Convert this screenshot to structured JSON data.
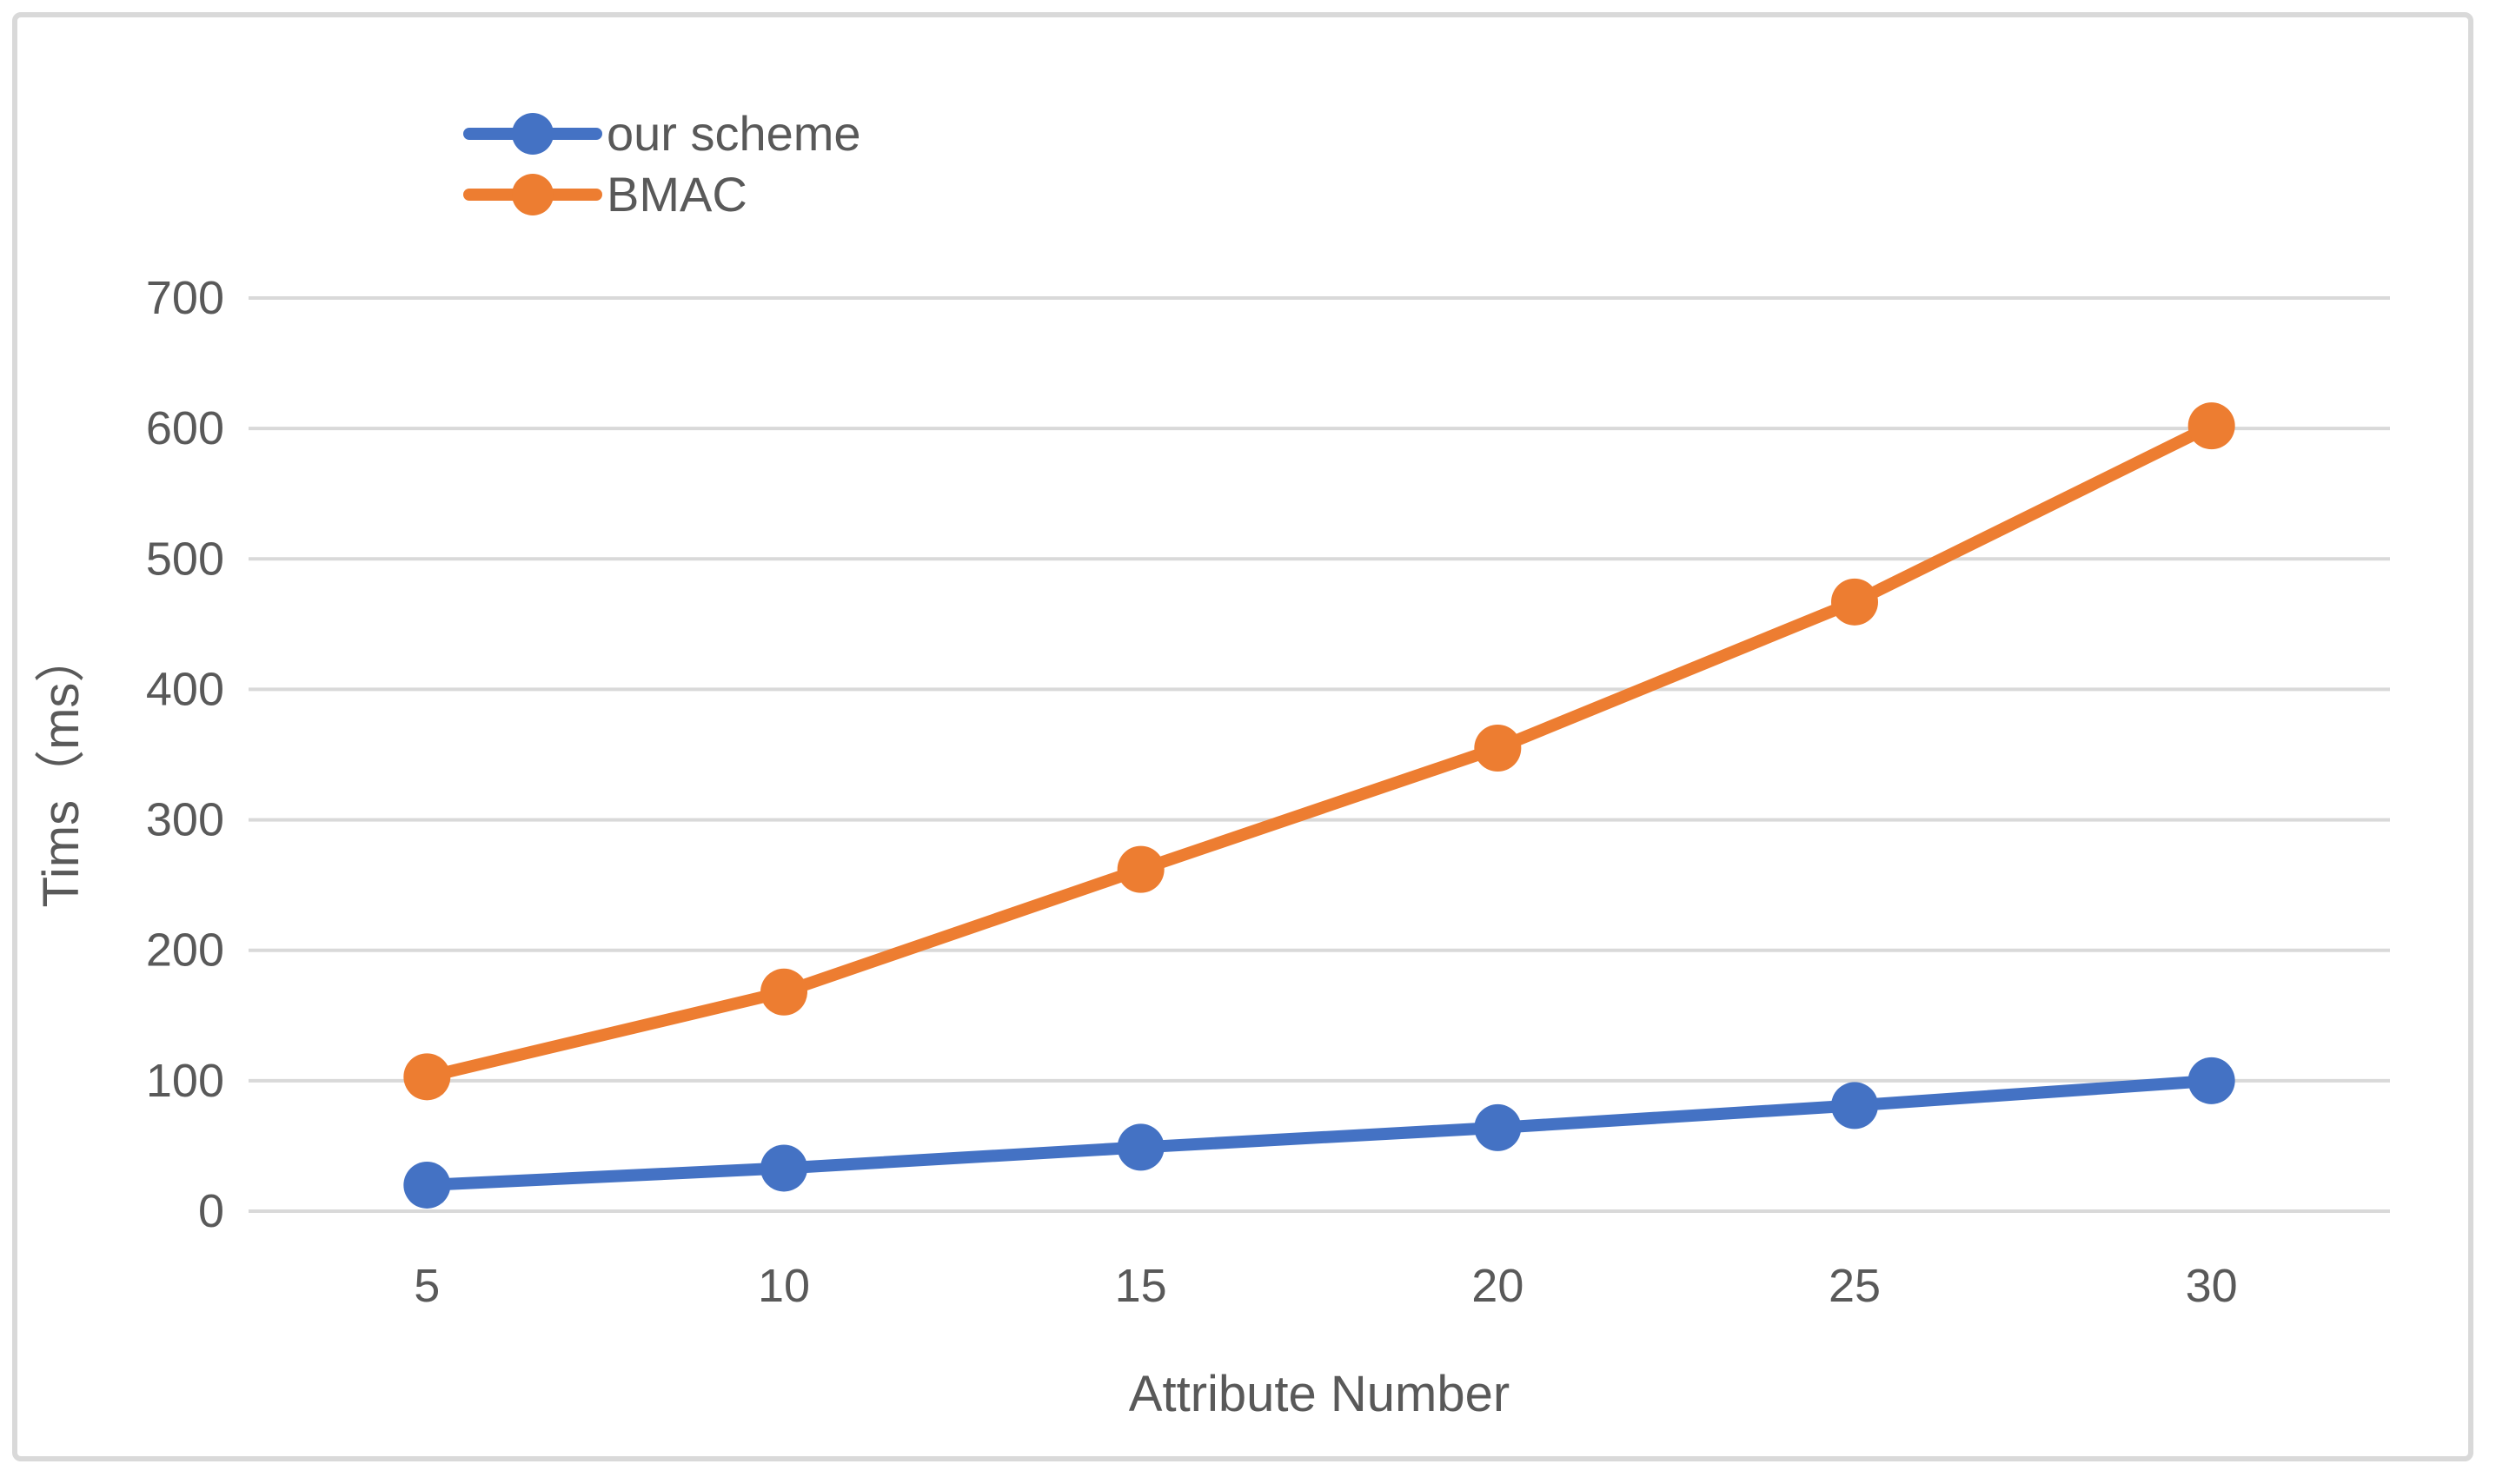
{
  "page": {
    "background_color": "#ffffff",
    "frame_border_color": "#d9d9d9"
  },
  "chart_data": {
    "type": "line",
    "title": "",
    "xlabel": "Attribute Number",
    "ylabel": "Tims（ms）",
    "categories": [
      5,
      10,
      15,
      20,
      25,
      30
    ],
    "series": [
      {
        "name": "our scheme",
        "color": "#4472C4",
        "values": [
          20,
          33,
          49,
          64,
          81,
          100
        ]
      },
      {
        "name": "BMAC",
        "color": "#ED7D31",
        "values": [
          103,
          168,
          262,
          355,
          467,
          602
        ]
      }
    ],
    "ylim": [
      0,
      700
    ],
    "ytick_step": 100,
    "ytick_labels": [
      "0",
      "100",
      "200",
      "300",
      "400",
      "500",
      "600",
      "700"
    ],
    "grid": true,
    "grid_color": "#d9d9d9",
    "text_color": "#595959",
    "legend_position": "top-left-inside",
    "legend_marker": "line-with-circle"
  }
}
